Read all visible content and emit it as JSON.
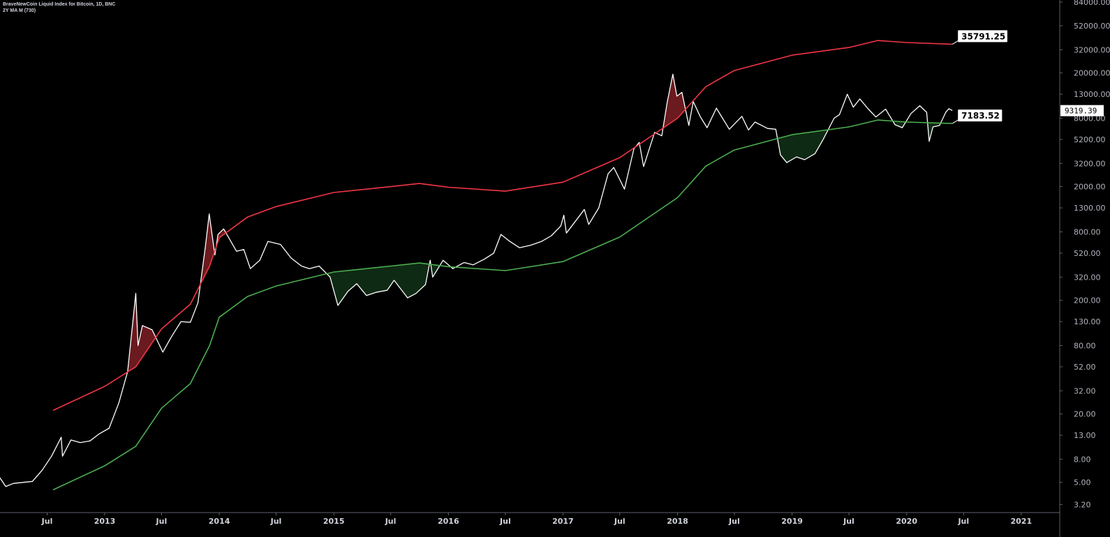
{
  "legend": {
    "title": "BraveNewCoin Liquid Index for Bitcoin, 1D, BNC",
    "indicator": "2Y MA M (730)"
  },
  "chart_data": {
    "type": "line",
    "title": "BraveNewCoin Liquid Index for Bitcoin, 1D, BNC",
    "y_scale": "log",
    "ylim": [
      3.0,
      90000
    ],
    "xlim": [
      "2012-02-01",
      "2021-01-31"
    ],
    "grid": false,
    "y_ticks": [
      "84000.00",
      "52000.00",
      "32000.00",
      "20000.00",
      "13000.00",
      "8000.00",
      "5200.00",
      "3200.00",
      "2000.00",
      "1300.00",
      "800.00",
      "520.00",
      "320.00",
      "200.00",
      "130.00",
      "80.00",
      "52.00",
      "32.00",
      "20.00",
      "13.00",
      "8.00",
      "5.00",
      "3.20"
    ],
    "x_ticks": [
      {
        "label": "Jul",
        "date": "2012-07-01"
      },
      {
        "label": "2013",
        "date": "2013-01-01"
      },
      {
        "label": "Jul",
        "date": "2013-07-01"
      },
      {
        "label": "2014",
        "date": "2014-01-01"
      },
      {
        "label": "Jul",
        "date": "2014-07-01"
      },
      {
        "label": "2015",
        "date": "2015-01-01"
      },
      {
        "label": "Jul",
        "date": "2015-07-01"
      },
      {
        "label": "2016",
        "date": "2016-01-01"
      },
      {
        "label": "Jul",
        "date": "2016-07-01"
      },
      {
        "label": "2017",
        "date": "2017-01-01"
      },
      {
        "label": "Jul",
        "date": "2017-07-01"
      },
      {
        "label": "2018",
        "date": "2018-01-01"
      },
      {
        "label": "Jul",
        "date": "2018-07-01"
      },
      {
        "label": "2019",
        "date": "2019-01-01"
      },
      {
        "label": "Jul",
        "date": "2019-07-01"
      },
      {
        "label": "2020",
        "date": "2020-01-01"
      },
      {
        "label": "Jul",
        "date": "2020-07-01"
      },
      {
        "label": "2021",
        "date": "2021-01-01"
      }
    ],
    "current_price_label": "9319.39",
    "series": [
      {
        "key": "price",
        "color": "#ffffff",
        "points": [
          [
            "2012-02-01",
            5.5
          ],
          [
            "2012-02-20",
            4.6
          ],
          [
            "2012-03-15",
            4.9
          ],
          [
            "2012-04-15",
            5.0
          ],
          [
            "2012-05-15",
            5.1
          ],
          [
            "2012-06-15",
            6.4
          ],
          [
            "2012-07-15",
            8.5
          ],
          [
            "2012-08-15",
            12.5
          ],
          [
            "2012-08-19",
            8.5
          ],
          [
            "2012-09-15",
            11.8
          ],
          [
            "2012-10-15",
            11.2
          ],
          [
            "2012-11-15",
            11.6
          ],
          [
            "2012-12-15",
            13.4
          ],
          [
            "2013-01-15",
            15
          ],
          [
            "2013-02-15",
            25
          ],
          [
            "2013-03-15",
            47
          ],
          [
            "2013-04-10",
            230
          ],
          [
            "2013-04-17",
            80
          ],
          [
            "2013-05-01",
            120
          ],
          [
            "2013-06-01",
            110
          ],
          [
            "2013-07-05",
            70
          ],
          [
            "2013-08-01",
            95
          ],
          [
            "2013-09-01",
            130
          ],
          [
            "2013-10-01",
            128
          ],
          [
            "2013-10-25",
            190
          ],
          [
            "2013-11-18",
            600
          ],
          [
            "2013-11-30",
            1150
          ],
          [
            "2013-12-18",
            500
          ],
          [
            "2013-12-28",
            760
          ],
          [
            "2014-01-15",
            850
          ],
          [
            "2014-02-25",
            540
          ],
          [
            "2014-03-20",
            560
          ],
          [
            "2014-04-10",
            380
          ],
          [
            "2014-05-10",
            450
          ],
          [
            "2014-06-05",
            660
          ],
          [
            "2014-07-15",
            620
          ],
          [
            "2014-08-18",
            470
          ],
          [
            "2014-09-20",
            400
          ],
          [
            "2014-10-15",
            380
          ],
          [
            "2014-11-15",
            400
          ],
          [
            "2014-12-20",
            320
          ],
          [
            "2015-01-14",
            180
          ],
          [
            "2015-02-15",
            240
          ],
          [
            "2015-03-15",
            280
          ],
          [
            "2015-04-15",
            220
          ],
          [
            "2015-05-15",
            235
          ],
          [
            "2015-06-20",
            245
          ],
          [
            "2015-07-12",
            300
          ],
          [
            "2015-08-24",
            210
          ],
          [
            "2015-09-20",
            230
          ],
          [
            "2015-10-20",
            275
          ],
          [
            "2015-11-04",
            450
          ],
          [
            "2015-11-12",
            320
          ],
          [
            "2015-12-15",
            450
          ],
          [
            "2016-01-15",
            380
          ],
          [
            "2016-02-20",
            430
          ],
          [
            "2016-03-20",
            410
          ],
          [
            "2016-04-25",
            460
          ],
          [
            "2016-05-25",
            520
          ],
          [
            "2016-06-17",
            760
          ],
          [
            "2016-07-15",
            660
          ],
          [
            "2016-08-15",
            580
          ],
          [
            "2016-09-20",
            610
          ],
          [
            "2016-10-25",
            660
          ],
          [
            "2016-11-25",
            740
          ],
          [
            "2016-12-25",
            900
          ],
          [
            "2017-01-04",
            1120
          ],
          [
            "2017-01-12",
            780
          ],
          [
            "2017-02-20",
            1080
          ],
          [
            "2017-03-10",
            1260
          ],
          [
            "2017-03-24",
            930
          ],
          [
            "2017-04-25",
            1300
          ],
          [
            "2017-05-25",
            2600
          ],
          [
            "2017-06-12",
            2950
          ],
          [
            "2017-07-16",
            1900
          ],
          [
            "2017-08-15",
            4300
          ],
          [
            "2017-09-01",
            4900
          ],
          [
            "2017-09-15",
            3000
          ],
          [
            "2017-10-20",
            6000
          ],
          [
            "2017-11-12",
            5600
          ],
          [
            "2017-11-29",
            11000
          ],
          [
            "2017-12-17",
            19500
          ],
          [
            "2017-12-30",
            12500
          ],
          [
            "2018-01-15",
            13500
          ],
          [
            "2018-02-06",
            6900
          ],
          [
            "2018-02-20",
            11200
          ],
          [
            "2018-03-15",
            8200
          ],
          [
            "2018-04-05",
            6600
          ],
          [
            "2018-05-05",
            9800
          ],
          [
            "2018-06-15",
            6400
          ],
          [
            "2018-07-25",
            8300
          ],
          [
            "2018-08-15",
            6300
          ],
          [
            "2018-09-05",
            7400
          ],
          [
            "2018-10-15",
            6500
          ],
          [
            "2018-11-10",
            6400
          ],
          [
            "2018-11-25",
            3800
          ],
          [
            "2018-12-15",
            3250
          ],
          [
            "2019-01-15",
            3650
          ],
          [
            "2019-02-10",
            3450
          ],
          [
            "2019-03-15",
            3900
          ],
          [
            "2019-04-10",
            5200
          ],
          [
            "2019-05-15",
            8000
          ],
          [
            "2019-06-01",
            8600
          ],
          [
            "2019-06-26",
            13000
          ],
          [
            "2019-07-15",
            10000
          ],
          [
            "2019-08-05",
            11800
          ],
          [
            "2019-09-01",
            9600
          ],
          [
            "2019-09-25",
            8200
          ],
          [
            "2019-10-26",
            9600
          ],
          [
            "2019-11-25",
            7000
          ],
          [
            "2019-12-18",
            6600
          ],
          [
            "2020-01-15",
            8800
          ],
          [
            "2020-02-12",
            10300
          ],
          [
            "2020-03-05",
            9000
          ],
          [
            "2020-03-13",
            5000
          ],
          [
            "2020-03-25",
            6700
          ],
          [
            "2020-04-15",
            6900
          ],
          [
            "2020-05-05",
            9000
          ],
          [
            "2020-05-15",
            9700
          ],
          [
            "2020-05-26",
            9319.39
          ]
        ]
      },
      {
        "key": "ma_2y",
        "color": "#4caf50",
        "last_value_label": "7183.52",
        "points": [
          [
            "2012-07-20",
            4.3
          ],
          [
            "2013-01-01",
            7.0
          ],
          [
            "2013-04-10",
            10.4
          ],
          [
            "2013-07-01",
            22.5
          ],
          [
            "2013-10-01",
            37
          ],
          [
            "2013-12-01",
            80
          ],
          [
            "2014-01-01",
            142
          ],
          [
            "2014-04-01",
            216
          ],
          [
            "2014-07-01",
            267
          ],
          [
            "2015-01-01",
            355
          ],
          [
            "2015-07-01",
            400
          ],
          [
            "2015-10-01",
            426
          ],
          [
            "2016-01-01",
            395
          ],
          [
            "2016-07-01",
            365
          ],
          [
            "2017-01-01",
            438
          ],
          [
            "2017-07-01",
            720
          ],
          [
            "2018-01-01",
            1600
          ],
          [
            "2018-04-01",
            3030
          ],
          [
            "2018-07-01",
            4200
          ],
          [
            "2019-01-01",
            5730
          ],
          [
            "2019-07-01",
            6700
          ],
          [
            "2019-10-01",
            7710
          ],
          [
            "2020-01-01",
            7400
          ],
          [
            "2020-05-26",
            7183.52
          ]
        ]
      },
      {
        "key": "ma_2y_x5",
        "color": "#f23645",
        "last_value_label": "35791.25",
        "points": [
          [
            "2012-07-20",
            21.5
          ],
          [
            "2013-01-01",
            35
          ],
          [
            "2013-04-10",
            52
          ],
          [
            "2013-07-01",
            112
          ],
          [
            "2013-10-01",
            185
          ],
          [
            "2013-12-01",
            400
          ],
          [
            "2014-01-01",
            710
          ],
          [
            "2014-04-01",
            1080
          ],
          [
            "2014-07-01",
            1335
          ],
          [
            "2015-01-01",
            1775
          ],
          [
            "2015-07-01",
            2000
          ],
          [
            "2015-10-01",
            2130
          ],
          [
            "2016-01-01",
            1975
          ],
          [
            "2016-07-01",
            1825
          ],
          [
            "2017-01-01",
            2190
          ],
          [
            "2017-07-01",
            3600
          ],
          [
            "2018-01-01",
            8000
          ],
          [
            "2018-04-01",
            15150
          ],
          [
            "2018-07-01",
            21000
          ],
          [
            "2019-01-01",
            28650
          ],
          [
            "2019-07-01",
            33500
          ],
          [
            "2019-10-01",
            38550
          ],
          [
            "2020-01-01",
            37000
          ],
          [
            "2020-05-26",
            35791.25
          ]
        ]
      }
    ],
    "fill_colors": {
      "above_upper": "#6b1a1f",
      "below_lower": "#0f2a14"
    }
  }
}
